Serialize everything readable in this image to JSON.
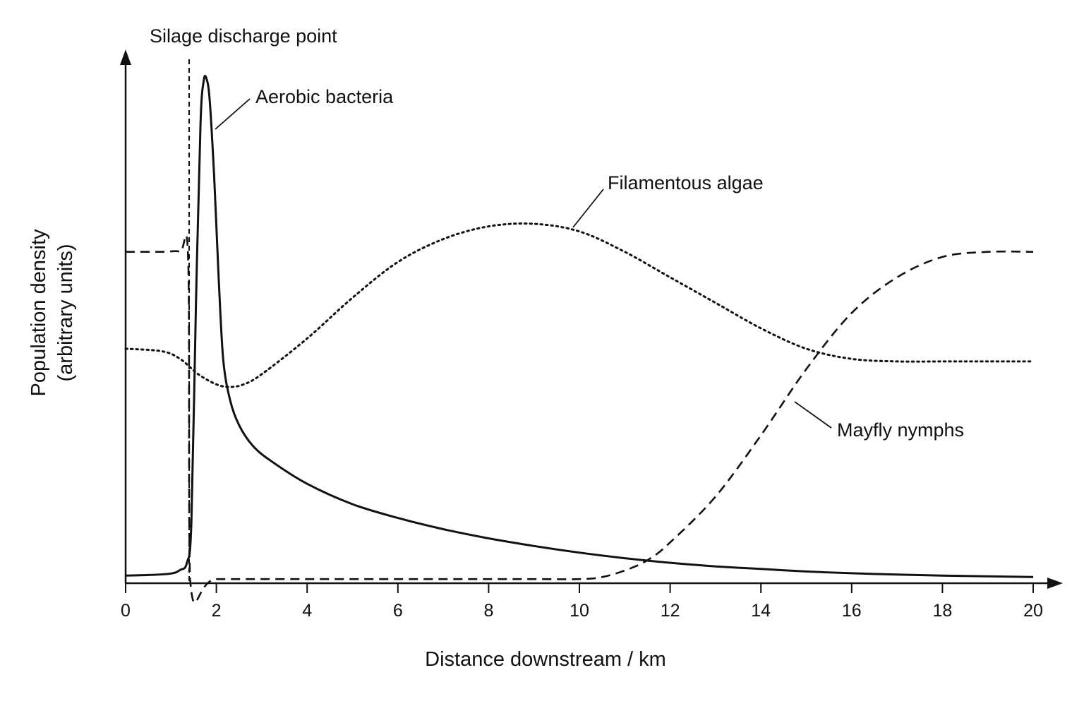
{
  "chart_data": {
    "type": "line",
    "xlabel": "Distance downstream / km",
    "ylabel_lines": [
      "Population density",
      "(arbitrary units)"
    ],
    "xlim": [
      0,
      20
    ],
    "ylim": [
      0,
      100
    ],
    "x_ticks": [
      0,
      2,
      4,
      6,
      8,
      10,
      12,
      14,
      16,
      18,
      20
    ],
    "x_tick_labels": [
      "0",
      "2",
      "4",
      "6",
      "8",
      "10",
      "12",
      "14",
      "16",
      "18",
      "20"
    ],
    "grid": false,
    "legend": "none",
    "discharge_marker": {
      "x": 1.4,
      "label": "Silage discharge point",
      "style": "dashed"
    },
    "series": [
      {
        "name": "Aerobic bacteria",
        "style": "solid",
        "x": [
          0,
          0.5,
          1.0,
          1.2,
          1.35,
          1.45,
          1.55,
          1.65,
          1.72,
          1.78,
          1.85,
          1.95,
          2.05,
          2.15,
          2.3,
          2.5,
          2.8,
          3.2,
          4,
          5,
          6,
          7,
          8,
          9,
          10,
          11,
          12,
          13,
          14,
          15,
          16,
          17,
          18,
          19,
          20
        ],
        "y": [
          1.5,
          1.6,
          1.9,
          2.6,
          4,
          12,
          55,
          90,
          98.5,
          99,
          95,
          80,
          60,
          44,
          36,
          31,
          27,
          24,
          19.5,
          15.5,
          12.8,
          10.6,
          8.8,
          7.3,
          6.0,
          4.9,
          4.0,
          3.3,
          2.8,
          2.3,
          1.95,
          1.7,
          1.5,
          1.35,
          1.2
        ]
      },
      {
        "name": "Filamentous algae",
        "style": "dotted",
        "x": [
          0,
          0.8,
          1.2,
          1.6,
          2.0,
          2.3,
          2.6,
          3.0,
          4,
          5,
          6,
          7,
          8,
          9,
          10,
          11,
          12,
          13,
          14,
          15,
          16,
          17,
          18,
          19,
          20
        ],
        "y": [
          46,
          45.5,
          44,
          41,
          39,
          38.5,
          39,
          41,
          48,
          56,
          63,
          67.5,
          70,
          70.5,
          69,
          65,
          60,
          55,
          50,
          46,
          44,
          43.5,
          43.5,
          43.5,
          43.5
        ]
      },
      {
        "name": "Mayfly nymphs",
        "style": "dashed",
        "x": [
          0,
          0.8,
          1.2,
          1.38,
          1.42,
          2,
          4,
          6,
          8,
          9,
          10,
          10.5,
          11,
          11.5,
          12,
          13,
          14,
          15,
          16,
          17,
          18,
          19,
          20
        ],
        "y": [
          65,
          65,
          65,
          63,
          0.8,
          0.8,
          0.8,
          0.8,
          0.8,
          0.8,
          0.8,
          1.2,
          2.5,
          4.5,
          8,
          17,
          29,
          42,
          53,
          60,
          64,
          65,
          65
        ]
      }
    ]
  }
}
